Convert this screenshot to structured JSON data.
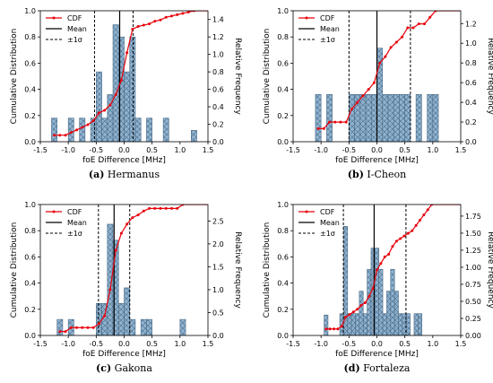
{
  "legend_labels": {
    "cdf": "CDF",
    "mean": "Mean",
    "sigma": "±1σ"
  },
  "colors": {
    "bar_fill": "#8fb3d0",
    "bar_edge": "#4b6b87",
    "cdf": "#e8000b",
    "axis": "#000000"
  },
  "chart_data": [
    {
      "type": "bar",
      "panel_label": "(a)",
      "caption": "Hermanus",
      "xlabel": "foE Difference [MHz]",
      "ylabel_left": "Cumulative Distribution",
      "ylabel_right": "Relative Frequency",
      "xlim": [
        -1.5,
        1.5
      ],
      "ylim_left": [
        0,
        1.0
      ],
      "ylim_right": [
        0,
        1.5
      ],
      "xticks": [
        -1.5,
        -1.0,
        -0.5,
        0.0,
        0.5,
        1.0,
        1.5
      ],
      "yticks_left": [
        0.0,
        0.2,
        0.4,
        0.6,
        0.8,
        1.0
      ],
      "yticks_right": [
        0.0,
        0.2,
        0.4,
        0.6,
        0.8,
        1.0,
        1.2,
        1.4
      ],
      "bin_width": 0.1,
      "bins": [
        {
          "x": -1.25,
          "h": 0.27
        },
        {
          "x": -0.95,
          "h": 0.27
        },
        {
          "x": -0.75,
          "h": 0.27
        },
        {
          "x": -0.55,
          "h": 0.27
        },
        {
          "x": -0.45,
          "h": 0.8
        },
        {
          "x": -0.35,
          "h": 0.27
        },
        {
          "x": -0.25,
          "h": 0.54
        },
        {
          "x": -0.15,
          "h": 1.34
        },
        {
          "x": -0.05,
          "h": 1.2
        },
        {
          "x": 0.05,
          "h": 0.8
        },
        {
          "x": 0.15,
          "h": 1.2
        },
        {
          "x": 0.25,
          "h": 0.27
        },
        {
          "x": 0.45,
          "h": 0.27
        },
        {
          "x": 0.75,
          "h": 0.27
        },
        {
          "x": 1.25,
          "h": 0.13
        }
      ],
      "cdf": [
        {
          "x": -1.25,
          "y": 0.05
        },
        {
          "x": -1.15,
          "y": 0.05
        },
        {
          "x": -1.05,
          "y": 0.05
        },
        {
          "x": -0.95,
          "y": 0.07
        },
        {
          "x": -0.85,
          "y": 0.09
        },
        {
          "x": -0.75,
          "y": 0.11
        },
        {
          "x": -0.65,
          "y": 0.13
        },
        {
          "x": -0.55,
          "y": 0.16
        },
        {
          "x": -0.45,
          "y": 0.22
        },
        {
          "x": -0.35,
          "y": 0.24
        },
        {
          "x": -0.25,
          "y": 0.28
        },
        {
          "x": -0.15,
          "y": 0.36
        },
        {
          "x": -0.05,
          "y": 0.47
        },
        {
          "x": 0.05,
          "y": 0.68
        },
        {
          "x": 0.15,
          "y": 0.86
        },
        {
          "x": 0.25,
          "y": 0.88
        },
        {
          "x": 0.35,
          "y": 0.89
        },
        {
          "x": 0.45,
          "y": 0.9
        },
        {
          "x": 0.55,
          "y": 0.92
        },
        {
          "x": 0.65,
          "y": 0.93
        },
        {
          "x": 0.75,
          "y": 0.95
        },
        {
          "x": 0.85,
          "y": 0.96
        },
        {
          "x": 0.95,
          "y": 0.97
        },
        {
          "x": 1.05,
          "y": 0.98
        },
        {
          "x": 1.15,
          "y": 0.99
        },
        {
          "x": 1.25,
          "y": 1.0
        }
      ],
      "mean": -0.08,
      "sigma_lo": -0.53,
      "sigma_hi": 0.16
    },
    {
      "type": "bar",
      "panel_label": "(b)",
      "caption": "I-Cheon",
      "xlabel": "foE Difference [MHz]",
      "ylabel_left": "Cumulative Distribution",
      "ylabel_right": "Relative Frequency",
      "xlim": [
        -1.5,
        1.5
      ],
      "ylim_left": [
        0,
        1.0
      ],
      "ylim_right": [
        0,
        1.33
      ],
      "xticks": [
        -1.5,
        -1.0,
        -0.5,
        0.0,
        0.5,
        1.0,
        1.5
      ],
      "yticks_left": [
        0.0,
        0.2,
        0.4,
        0.6,
        0.8,
        1.0
      ],
      "yticks_right": [
        0.0,
        0.2,
        0.4,
        0.6,
        0.8,
        1.0,
        1.2
      ],
      "bin_width": 0.1,
      "bins": [
        {
          "x": -1.05,
          "h": 0.48
        },
        {
          "x": -0.85,
          "h": 0.48
        },
        {
          "x": -0.45,
          "h": 0.48
        },
        {
          "x": -0.35,
          "h": 0.48
        },
        {
          "x": -0.25,
          "h": 0.48
        },
        {
          "x": -0.15,
          "h": 0.48
        },
        {
          "x": -0.05,
          "h": 0.48
        },
        {
          "x": 0.05,
          "h": 0.95
        },
        {
          "x": 0.15,
          "h": 0.48
        },
        {
          "x": 0.25,
          "h": 0.48
        },
        {
          "x": 0.35,
          "h": 0.48
        },
        {
          "x": 0.45,
          "h": 0.48
        },
        {
          "x": 0.55,
          "h": 0.48
        },
        {
          "x": 0.75,
          "h": 0.48
        },
        {
          "x": 0.95,
          "h": 0.48
        },
        {
          "x": 1.05,
          "h": 0.48
        }
      ],
      "cdf": [
        {
          "x": -1.05,
          "y": 0.1
        },
        {
          "x": -0.95,
          "y": 0.1
        },
        {
          "x": -0.85,
          "y": 0.15
        },
        {
          "x": -0.75,
          "y": 0.15
        },
        {
          "x": -0.65,
          "y": 0.15
        },
        {
          "x": -0.55,
          "y": 0.15
        },
        {
          "x": -0.45,
          "y": 0.25
        },
        {
          "x": -0.35,
          "y": 0.3
        },
        {
          "x": -0.25,
          "y": 0.35
        },
        {
          "x": -0.15,
          "y": 0.4
        },
        {
          "x": -0.05,
          "y": 0.45
        },
        {
          "x": 0.05,
          "y": 0.6
        },
        {
          "x": 0.15,
          "y": 0.65
        },
        {
          "x": 0.25,
          "y": 0.72
        },
        {
          "x": 0.35,
          "y": 0.76
        },
        {
          "x": 0.45,
          "y": 0.8
        },
        {
          "x": 0.55,
          "y": 0.87
        },
        {
          "x": 0.65,
          "y": 0.87
        },
        {
          "x": 0.75,
          "y": 0.9
        },
        {
          "x": 0.85,
          "y": 0.9
        },
        {
          "x": 0.95,
          "y": 0.95
        },
        {
          "x": 1.05,
          "y": 1.0
        }
      ],
      "mean": 0.0,
      "sigma_lo": -0.5,
      "sigma_hi": 0.6
    },
    {
      "type": "bar",
      "panel_label": "(c)",
      "caption": "Gakona",
      "xlabel": "foE Difference [MHz]",
      "ylabel_left": "Cumulative Distribution",
      "ylabel_right": "Relative Frequency",
      "xlim": [
        -1.5,
        1.5
      ],
      "ylim_left": [
        0,
        1.0
      ],
      "ylim_right": [
        0,
        2.86
      ],
      "xticks": [
        -1.5,
        -1.0,
        -0.5,
        0.0,
        0.5,
        1.0,
        1.5
      ],
      "yticks_left": [
        0.0,
        0.2,
        0.4,
        0.6,
        0.8,
        1.0
      ],
      "yticks_right": [
        0.0,
        0.5,
        1.0,
        1.5,
        2.0,
        2.5
      ],
      "bin_width": 0.1,
      "bins": [
        {
          "x": -1.15,
          "h": 0.35
        },
        {
          "x": -0.95,
          "h": 0.35
        },
        {
          "x": -0.45,
          "h": 0.7
        },
        {
          "x": -0.35,
          "h": 0.7
        },
        {
          "x": -0.25,
          "h": 2.43
        },
        {
          "x": -0.15,
          "h": 2.08
        },
        {
          "x": -0.05,
          "h": 0.7
        },
        {
          "x": 0.05,
          "h": 1.04
        },
        {
          "x": 0.15,
          "h": 0.35
        },
        {
          "x": 0.35,
          "h": 0.35
        },
        {
          "x": 0.45,
          "h": 0.35
        },
        {
          "x": 1.05,
          "h": 0.35
        }
      ],
      "cdf": [
        {
          "x": -1.15,
          "y": 0.03
        },
        {
          "x": -1.05,
          "y": 0.03
        },
        {
          "x": -0.95,
          "y": 0.06
        },
        {
          "x": -0.85,
          "y": 0.06
        },
        {
          "x": -0.75,
          "y": 0.06
        },
        {
          "x": -0.65,
          "y": 0.06
        },
        {
          "x": -0.55,
          "y": 0.06
        },
        {
          "x": -0.45,
          "y": 0.09
        },
        {
          "x": -0.35,
          "y": 0.15
        },
        {
          "x": -0.25,
          "y": 0.35
        },
        {
          "x": -0.15,
          "y": 0.65
        },
        {
          "x": -0.05,
          "y": 0.78
        },
        {
          "x": 0.05,
          "y": 0.85
        },
        {
          "x": 0.15,
          "y": 0.9
        },
        {
          "x": 0.25,
          "y": 0.92
        },
        {
          "x": 0.35,
          "y": 0.95
        },
        {
          "x": 0.45,
          "y": 0.97
        },
        {
          "x": 0.55,
          "y": 0.97
        },
        {
          "x": 0.65,
          "y": 0.97
        },
        {
          "x": 0.75,
          "y": 0.97
        },
        {
          "x": 0.85,
          "y": 0.97
        },
        {
          "x": 0.95,
          "y": 0.97
        },
        {
          "x": 1.05,
          "y": 1.0
        }
      ],
      "mean": -0.18,
      "sigma_lo": -0.46,
      "sigma_hi": 0.1
    },
    {
      "type": "bar",
      "panel_label": "(d)",
      "caption": "Fortaleza",
      "xlabel": "foE Difference [MHz]",
      "ylabel_left": "Cumulative Distribution",
      "ylabel_right": "Relative Frequency",
      "xlim": [
        -1.5,
        1.5
      ],
      "ylim_left": [
        0,
        1.0
      ],
      "ylim_right": [
        0,
        1.92
      ],
      "xticks": [
        -1.5,
        -1.0,
        -0.5,
        0.0,
        0.5,
        1.0,
        1.5
      ],
      "yticks_left": [
        0.0,
        0.2,
        0.4,
        0.6,
        0.8,
        1.0
      ],
      "yticks_right": [
        0.0,
        0.25,
        0.5,
        0.75,
        1.0,
        1.25,
        1.5,
        1.75
      ],
      "bin_width": 0.07,
      "bins": [
        {
          "x": -0.91,
          "h": 0.3
        },
        {
          "x": -0.63,
          "h": 0.32
        },
        {
          "x": -0.56,
          "h": 1.6
        },
        {
          "x": -0.49,
          "h": 0.32
        },
        {
          "x": -0.42,
          "h": 0.32
        },
        {
          "x": -0.35,
          "h": 0.32
        },
        {
          "x": -0.28,
          "h": 0.65
        },
        {
          "x": -0.21,
          "h": 0.32
        },
        {
          "x": -0.14,
          "h": 0.97
        },
        {
          "x": -0.07,
          "h": 1.28
        },
        {
          "x": 0.0,
          "h": 1.28
        },
        {
          "x": 0.07,
          "h": 0.97
        },
        {
          "x": 0.14,
          "h": 0.32
        },
        {
          "x": 0.21,
          "h": 0.65
        },
        {
          "x": 0.28,
          "h": 0.97
        },
        {
          "x": 0.35,
          "h": 0.65
        },
        {
          "x": 0.42,
          "h": 0.32
        },
        {
          "x": 0.49,
          "h": 0.32
        },
        {
          "x": 0.56,
          "h": 0.32
        },
        {
          "x": 0.7,
          "h": 0.32
        },
        {
          "x": 0.77,
          "h": 0.32
        }
      ],
      "cdf": [
        {
          "x": -0.91,
          "y": 0.05
        },
        {
          "x": -0.84,
          "y": 0.05
        },
        {
          "x": -0.77,
          "y": 0.05
        },
        {
          "x": -0.7,
          "y": 0.05
        },
        {
          "x": -0.63,
          "y": 0.07
        },
        {
          "x": -0.56,
          "y": 0.14
        },
        {
          "x": -0.49,
          "y": 0.16
        },
        {
          "x": -0.42,
          "y": 0.18
        },
        {
          "x": -0.35,
          "y": 0.2
        },
        {
          "x": -0.28,
          "y": 0.23
        },
        {
          "x": -0.21,
          "y": 0.25
        },
        {
          "x": -0.14,
          "y": 0.3
        },
        {
          "x": -0.07,
          "y": 0.36
        },
        {
          "x": 0.0,
          "y": 0.5
        },
        {
          "x": 0.07,
          "y": 0.55
        },
        {
          "x": 0.14,
          "y": 0.6
        },
        {
          "x": 0.21,
          "y": 0.62
        },
        {
          "x": 0.28,
          "y": 0.68
        },
        {
          "x": 0.35,
          "y": 0.72
        },
        {
          "x": 0.42,
          "y": 0.74
        },
        {
          "x": 0.49,
          "y": 0.76
        },
        {
          "x": 0.56,
          "y": 0.78
        },
        {
          "x": 0.63,
          "y": 0.8
        },
        {
          "x": 0.7,
          "y": 0.84
        },
        {
          "x": 0.77,
          "y": 0.88
        },
        {
          "x": 0.84,
          "y": 0.92
        },
        {
          "x": 0.91,
          "y": 0.96
        },
        {
          "x": 0.98,
          "y": 1.0
        }
      ],
      "mean": -0.05,
      "sigma_lo": -0.6,
      "sigma_hi": 0.52
    }
  ]
}
